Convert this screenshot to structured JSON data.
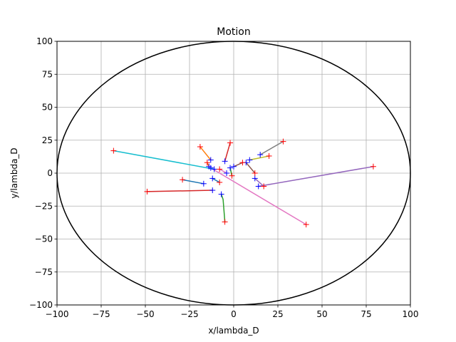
{
  "chart_data": {
    "type": "line",
    "title": "Motion",
    "xlabel": "x/lambda_D",
    "ylabel": "y/lambda_D",
    "xlim": [
      -100,
      100
    ],
    "ylim": [
      -100,
      100
    ],
    "xticks": [
      -100,
      -75,
      -50,
      -25,
      0,
      25,
      50,
      75,
      100
    ],
    "yticks": [
      -100,
      -75,
      -50,
      -25,
      0,
      25,
      50,
      75,
      100
    ],
    "xtick_labels": [
      "−100",
      "−75",
      "−50",
      "−25",
      "0",
      "25",
      "50",
      "75",
      "100"
    ],
    "ytick_labels": [
      "−100",
      "−75",
      "−50",
      "−25",
      "0",
      "25",
      "50",
      "75",
      "100"
    ],
    "grid": true,
    "boundary": {
      "shape": "circle",
      "center": [
        0,
        0
      ],
      "radius": 100,
      "color": "#000000"
    },
    "start_marker": {
      "symbol": "+",
      "color": "#0000ff"
    },
    "end_marker": {
      "symbol": "+",
      "color": "#ff0000"
    },
    "series": [
      {
        "color": "#1f77b4",
        "points": [
          [
            -17,
            -8
          ],
          [
            -29,
            -5
          ]
        ]
      },
      {
        "color": "#ff7f0e",
        "points": [
          [
            -13,
            10
          ],
          [
            -19,
            20
          ]
        ]
      },
      {
        "color": "#2ca02c",
        "points": [
          [
            -7,
            -16
          ],
          [
            -6,
            -20
          ],
          [
            -5,
            -37
          ]
        ]
      },
      {
        "color": "#d62728",
        "points": [
          [
            -5,
            9
          ],
          [
            -2,
            23
          ]
        ]
      },
      {
        "color": "#9467bd",
        "points": [
          [
            14,
            -10
          ],
          [
            79,
            5
          ]
        ]
      },
      {
        "color": "#8c564b",
        "points": [
          [
            7,
            8
          ],
          [
            12,
            0
          ]
        ]
      },
      {
        "color": "#e377c2",
        "points": [
          [
            -13,
            4
          ],
          [
            41,
            -39
          ]
        ]
      },
      {
        "color": "#7f7f7f",
        "points": [
          [
            15,
            14
          ],
          [
            28,
            24
          ]
        ]
      },
      {
        "color": "#bcbd22",
        "points": [
          [
            9,
            10
          ],
          [
            20,
            13
          ]
        ]
      },
      {
        "color": "#17becf",
        "points": [
          [
            -11,
            3
          ],
          [
            -68,
            17
          ]
        ]
      },
      {
        "color": "#1f77b4",
        "points": [
          [
            -12,
            -4
          ],
          [
            -8,
            -7
          ]
        ]
      },
      {
        "color": "#ff7f0e",
        "points": [
          [
            -14,
            5
          ],
          [
            -15,
            8
          ]
        ]
      },
      {
        "color": "#2ca02c",
        "points": [
          [
            -2,
            4
          ],
          [
            -1,
            -2
          ]
        ]
      },
      {
        "color": "#d62728",
        "points": [
          [
            -12,
            -13
          ],
          [
            -49,
            -14
          ]
        ]
      },
      {
        "color": "#9467bd",
        "points": [
          [
            12,
            -4
          ],
          [
            17,
            -10
          ]
        ]
      },
      {
        "color": "#8c564b",
        "points": [
          [
            0,
            5
          ],
          [
            5,
            8
          ]
        ]
      },
      {
        "color": "#e377c2",
        "points": [
          [
            -4,
            0
          ],
          [
            -8,
            3
          ]
        ]
      }
    ]
  }
}
